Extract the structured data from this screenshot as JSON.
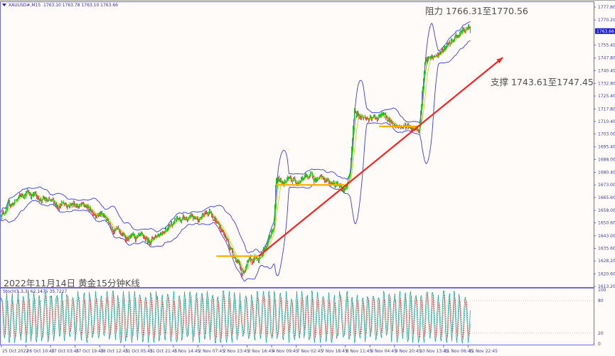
{
  "header": {
    "symbol": "XAUUSD#,M15",
    "ohlc": "1763.10 1763.78 1763.10 1763.66"
  },
  "annotations": {
    "resistance": "阻力 1766.31至1770.56",
    "support": "支撑 1743.61至1747.45",
    "caption": "2022年11月14日 黄金15分钟K线"
  },
  "colors": {
    "background": "#fefbf9",
    "frame": "#6a6ae8",
    "candle_up": "#00b000",
    "candle_down": "#e02020",
    "band": "#3c3ce6",
    "ma_fast": "#00d000",
    "ma_slow": "#e8c000",
    "trendline": "#ff2020",
    "support_lines": "#ffb000",
    "stoch_main": "#20b0a0",
    "stoch_signal": "#e03030"
  },
  "chart_data": [
    {
      "type": "candlestick",
      "title": "",
      "timeframe": "M15",
      "ylim": [
        1613.2,
        1777.8
      ],
      "y_ticks": [
        "1777.80",
        "1770.20",
        "1755.40",
        "1747.80",
        "1740.40",
        "1732.80",
        "1725.40",
        "1717.80",
        "1710.40",
        "1703.00",
        "1695.40",
        "1688.00",
        "1680.40",
        "1673.00",
        "1665.60",
        "1658.00",
        "1650.60",
        "1643.00",
        "1635.60",
        "1628.20",
        "1620.60",
        "1613.20"
      ],
      "last_price": "1763.66",
      "x_ticks": [
        {
          "label": "25 Oct 2022",
          "time": "25 Oct 18:45"
        },
        {
          "label": "26 Oct 10:45",
          "time": "26 Oct 10:45"
        },
        {
          "label": "27 Oct 03:45",
          "time": "27 Oct 03:45"
        },
        {
          "label": "27 Oct 19:45",
          "time": "27 Oct 19:45"
        },
        {
          "label": "28 Oct 12:45",
          "time": "28 Oct 12:45"
        },
        {
          "label": "31 Oct 05:45",
          "time": "31 Oct 05:45"
        },
        {
          "label": "31 Oct 21:45",
          "time": "31 Oct 21:45"
        },
        {
          "label": "1 Nov 14:45",
          "time": "1 Nov 14:45"
        },
        {
          "label": "2 Nov 07:45",
          "time": "2 Nov 07:45"
        },
        {
          "label": "2 Nov 23:45",
          "time": "2 Nov 23:45"
        },
        {
          "label": "3 Nov 16:45",
          "time": "3 Nov 16:45"
        },
        {
          "label": "4 Nov 09:45",
          "time": "4 Nov 09:45"
        },
        {
          "label": "7 Nov 02:45",
          "time": "7 Nov 02:45"
        },
        {
          "label": "7 Nov 18:45",
          "time": "7 Nov 18:45"
        },
        {
          "label": "8 Nov 11:45",
          "time": "8 Nov 11:45"
        },
        {
          "label": "9 Nov 04:45",
          "time": "9 Nov 04:45"
        },
        {
          "label": "9 Nov 20:45",
          "time": "9 Nov 20:45"
        },
        {
          "label": "10 Nov 13:45",
          "time": "10 Nov 13:45"
        },
        {
          "label": "11 Nov 06:45",
          "time": "11 Nov 06:45"
        },
        {
          "label": "11 Nov 22:45",
          "time": "11 Nov 22:45"
        }
      ],
      "close_path": [
        [
          "25 Oct 18:45",
          1656.5
        ],
        [
          "26 Oct 10:45",
          1669
        ],
        [
          "27 Oct 03:45",
          1662
        ],
        [
          "27 Oct 19:45",
          1662
        ],
        [
          "28 Oct 12:45",
          1656
        ],
        [
          "31 Oct 05:45",
          1642
        ],
        [
          "31 Oct 21:45",
          1640
        ],
        [
          "1 Nov 14:45",
          1652
        ],
        [
          "2 Nov 07:45",
          1653
        ],
        [
          "2 Nov 15:45",
          1658
        ],
        [
          "2 Nov 23:45",
          1645
        ],
        [
          "3 Nov 08:45",
          1630
        ],
        [
          "3 Nov 12:45",
          1621
        ],
        [
          "3 Nov 16:45",
          1626
        ],
        [
          "4 Nov 01:45",
          1631
        ],
        [
          "4 Nov 09:45",
          1645
        ],
        [
          "4 Nov 15:45",
          1650
        ],
        [
          "4 Nov 19:45",
          1675
        ],
        [
          "7 Nov 02:45",
          1676
        ],
        [
          "7 Nov 10:45",
          1678
        ],
        [
          "7 Nov 18:45",
          1676
        ],
        [
          "8 Nov 07:45",
          1673
        ],
        [
          "8 Nov 11:45",
          1672
        ],
        [
          "8 Nov 14:45",
          1680
        ],
        [
          "8 Nov 17:45",
          1716
        ],
        [
          "9 Nov 04:45",
          1711
        ],
        [
          "9 Nov 12:45",
          1714
        ],
        [
          "9 Nov 20:45",
          1708
        ],
        [
          "10 Nov 13:45",
          1707
        ],
        [
          "10 Nov 15:45",
          1730
        ],
        [
          "10 Nov 17:45",
          1745
        ],
        [
          "11 Nov 06:45",
          1752
        ],
        [
          "11 Nov 16:45",
          1762
        ],
        [
          "11 Nov 22:45",
          1766
        ],
        [
          "11 Nov 23:45",
          1763.66
        ]
      ],
      "trendline": {
        "from": [
          "4 Nov 00:45",
          1631
        ],
        "to": [
          "12 Nov 06:00",
          1748
        ]
      },
      "support_segments": [
        {
          "from": "2 Nov 19:45",
          "to": "4 Nov 00:45",
          "price": 1631
        },
        {
          "from": "4 Nov 21:45",
          "to": "8 Nov 11:15",
          "price": 1673
        },
        {
          "from": "9 Nov 10:45",
          "to": "10 Nov 13:45",
          "price": 1707.5
        }
      ]
    },
    {
      "type": "line",
      "indicator_label": "Stoch(5,3,3) 62.1475 35.7227",
      "ylim": [
        0,
        100
      ],
      "y_ticks": [
        "100",
        "80",
        "20",
        "0"
      ],
      "levels": [
        80,
        20
      ],
      "current": {
        "main": 62.1475,
        "signal": 35.7227
      }
    }
  ]
}
